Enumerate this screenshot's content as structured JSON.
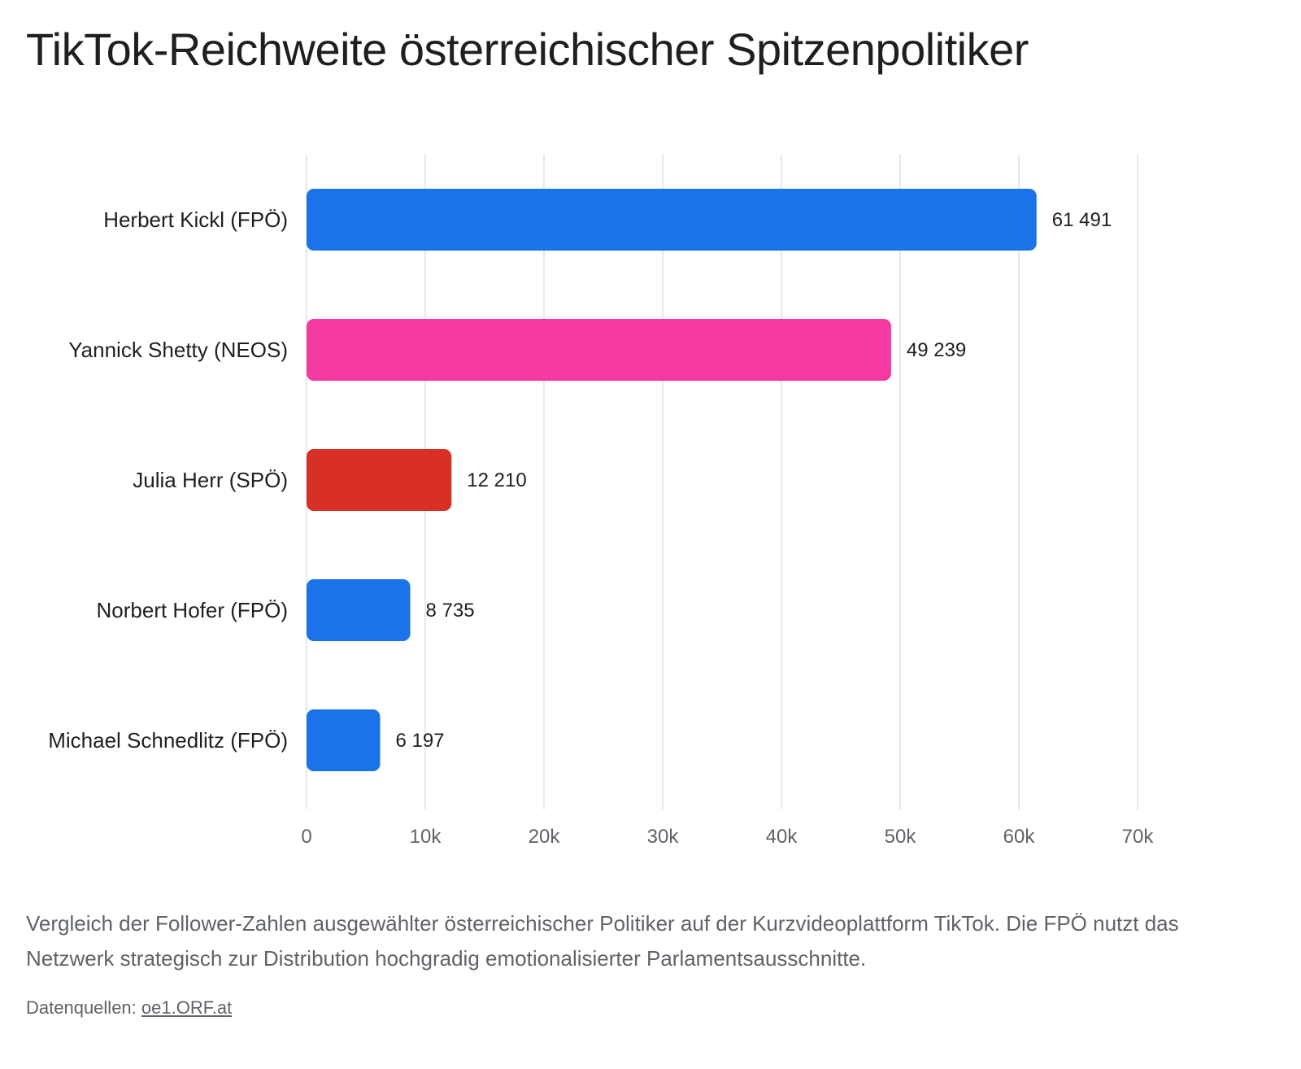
{
  "chart_data": {
    "type": "bar",
    "orientation": "horizontal",
    "title": "TikTok-Reichweite österreichischer Spitzenpolitiker",
    "xlabel": "",
    "ylabel": "",
    "categories": [
      "Herbert Kickl (FPÖ)",
      "Yannick Shetty (NEOS)",
      "Julia Herr (SPÖ)",
      "Norbert Hofer (FPÖ)",
      "Michael Schnedlitz (FPÖ)"
    ],
    "values": [
      61491,
      49239,
      12210,
      8735,
      6197
    ],
    "value_labels": [
      "61 491",
      "49 239",
      "12 210",
      "8 735",
      "6 197"
    ],
    "colors": [
      "#1a73e8",
      "#f439a0",
      "#d93025",
      "#1a73e8",
      "#1a73e8"
    ],
    "xlim": [
      0,
      70000
    ],
    "xticks": [
      0,
      10000,
      20000,
      30000,
      40000,
      50000,
      60000,
      70000
    ],
    "xtick_labels": [
      "0",
      "10k",
      "20k",
      "30k",
      "40k",
      "50k",
      "60k",
      "70k"
    ],
    "grid": true,
    "legend": "none"
  },
  "description": "Vergleich der Follower-Zahlen ausgewählter österreichischer Politiker auf der Kurzvideoplattform TikTok. Die FPÖ nutzt das Netzwerk strategisch zur Distribution hochgradig emotionalisierter Parlamentsausschnitte.",
  "source": {
    "label": "Datenquellen:",
    "link_text": "oe1.ORF.at"
  }
}
